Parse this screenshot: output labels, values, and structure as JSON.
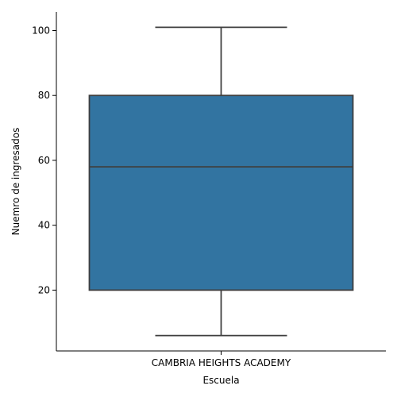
{
  "chart_data": {
    "type": "box",
    "categories": [
      "CAMBRIA HEIGHTS ACADEMY"
    ],
    "boxes": [
      {
        "category": "CAMBRIA HEIGHTS ACADEMY",
        "whisker_low": 6,
        "q1": 20,
        "median": 58,
        "q3": 80,
        "whisker_high": 101
      }
    ],
    "xlabel": "Escuela",
    "ylabel": "Nuemro de ingresados",
    "ylim": [
      1.25,
      105.75
    ],
    "yticks": [
      20,
      40,
      60,
      80,
      100
    ],
    "grid": false,
    "colors": {
      "box_fill": "#3274a1",
      "box_edge": "#3f3f3f",
      "axis": "#000000"
    }
  }
}
